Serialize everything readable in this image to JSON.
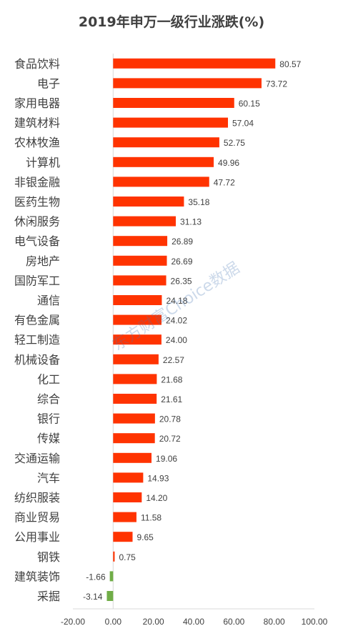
{
  "chart_data": {
    "type": "bar",
    "orientation": "horizontal",
    "title": "2019年申万一级行业涨跌(%)",
    "categories": [
      "食品饮料",
      "电子",
      "家用电器",
      "建筑材料",
      "农林牧渔",
      "计算机",
      "非银金融",
      "医药生物",
      "休闲服务",
      "电气设备",
      "房地产",
      "国防军工",
      "通信",
      "有色金属",
      "轻工制造",
      "机械设备",
      "化工",
      "综合",
      "银行",
      "传媒",
      "交通运输",
      "汽车",
      "纺织服装",
      "商业贸易",
      "公用事业",
      "钢铁",
      "建筑装饰",
      "采掘"
    ],
    "values": [
      80.57,
      73.72,
      60.15,
      57.04,
      52.75,
      49.96,
      47.72,
      35.18,
      31.13,
      26.89,
      26.69,
      26.35,
      24.18,
      24.02,
      24.0,
      22.57,
      21.68,
      21.61,
      20.78,
      20.72,
      19.06,
      14.93,
      14.2,
      11.58,
      9.65,
      0.75,
      -1.66,
      -3.14
    ],
    "value_labels": [
      "80.57",
      "73.72",
      "60.15",
      "57.04",
      "52.75",
      "49.96",
      "47.72",
      "35.18",
      "31.13",
      "26.89",
      "26.69",
      "26.35",
      "24.18",
      "24.02",
      "24.00",
      "22.57",
      "21.68",
      "21.61",
      "20.78",
      "20.72",
      "19.06",
      "14.93",
      "14.20",
      "11.58",
      "9.65",
      "0.75",
      "-1.66",
      "-3.14"
    ],
    "xlim": [
      -20,
      100
    ],
    "x_ticks": [
      "-20.00",
      "0.00",
      "20.00",
      "40.00",
      "60.00",
      "80.00",
      "100.00"
    ],
    "x_tick_values": [
      -20,
      0,
      20,
      40,
      60,
      80,
      100
    ],
    "grid": false,
    "legend": false,
    "colors": {
      "positive": "#ff3300",
      "negative": "#70ad47",
      "label": "#404040",
      "axis": "#d9d9d9"
    }
  },
  "watermark": "东方财富Choice数据"
}
